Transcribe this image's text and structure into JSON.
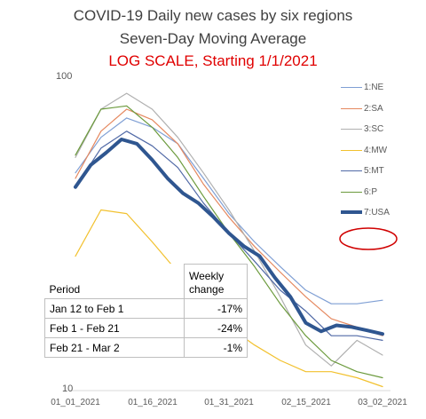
{
  "chart_data": {
    "type": "line",
    "title": "COVID-19 Daily new cases by six regions",
    "subtitle": "Seven-Day Moving Average",
    "annotation": "LOG SCALE, Starting 1/1/2021",
    "y_scale": "log",
    "ylim": [
      10,
      100
    ],
    "y_ticks": [
      "100",
      "10"
    ],
    "x_ticks": [
      "01_01_2021",
      "01_16_2021",
      "01_31_2021",
      "02_15_2021",
      "03_02_2021"
    ],
    "x_range": [
      "2021-01-01",
      "2021-03-02"
    ],
    "grid": false,
    "legend_position": "right",
    "series": [
      {
        "name": "1:NE",
        "color": "#7f9fd4",
        "width": 1.2,
        "x": [
          0,
          5,
          10,
          15,
          20,
          25,
          30,
          35,
          40,
          45,
          50,
          55,
          60
        ],
        "y": [
          50,
          65,
          75,
          70,
          62,
          48,
          37,
          30,
          25,
          21,
          19,
          19,
          19.5
        ]
      },
      {
        "name": "2:SA",
        "color": "#e5885f",
        "width": 1.2,
        "x": [
          0,
          5,
          10,
          15,
          20,
          25,
          30,
          35,
          40,
          45,
          50,
          55,
          60
        ],
        "y": [
          48,
          68,
          80,
          74,
          62,
          46,
          36,
          29,
          24,
          20,
          17,
          16,
          15
        ]
      },
      {
        "name": "3:SC",
        "color": "#b0b0b0",
        "width": 1.2,
        "x": [
          0,
          5,
          10,
          15,
          20,
          25,
          30,
          35,
          40,
          45,
          50,
          55,
          60
        ],
        "y": [
          56,
          80,
          90,
          80,
          65,
          50,
          38,
          28,
          20,
          14,
          12,
          14.5,
          13
        ]
      },
      {
        "name": "4:MW",
        "color": "#f2c12e",
        "width": 1.2,
        "x": [
          0,
          5,
          10,
          15,
          20,
          25,
          30,
          35,
          40,
          45,
          50,
          55,
          60
        ],
        "y": [
          27,
          38,
          37,
          30,
          24,
          19,
          16,
          14,
          12.5,
          11.5,
          11.5,
          11,
          10.3
        ]
      },
      {
        "name": "5:MT",
        "color": "#5069a6",
        "width": 1.2,
        "x": [
          0,
          5,
          10,
          15,
          20,
          25,
          30,
          35,
          40,
          45,
          50,
          55,
          60
        ],
        "y": [
          45,
          60,
          68,
          61,
          52,
          40,
          32,
          26,
          21,
          18,
          15,
          15,
          14.5
        ]
      },
      {
        "name": "6:P",
        "color": "#6b9a3c",
        "width": 1.2,
        "x": [
          0,
          5,
          10,
          15,
          20,
          25,
          30,
          35,
          40,
          45,
          50,
          55,
          60
        ],
        "y": [
          57,
          80,
          82,
          70,
          56,
          42,
          32,
          25,
          19,
          15,
          12.5,
          11.5,
          11
        ]
      },
      {
        "name": "7:USA",
        "color": "#2f5690",
        "width": 4,
        "x": [
          0,
          3,
          6,
          9,
          12,
          15,
          18,
          21,
          24,
          27,
          30,
          33,
          36,
          39,
          42,
          45,
          48,
          51,
          54,
          57,
          60
        ],
        "y": [
          45,
          53,
          58,
          64,
          62,
          55,
          48,
          43,
          40,
          36,
          32,
          29,
          27,
          23,
          20,
          16.5,
          15.5,
          16.2,
          16,
          15.6,
          15.2
        ]
      }
    ],
    "highlight": "circle around 7:USA near 03_02_2021"
  },
  "table": {
    "header_col1": "Period",
    "header_col2": "Weekly change",
    "rows": [
      {
        "period": "Jan 12 to Feb 1",
        "change": "-17%"
      },
      {
        "period": "Feb 1 - Feb 21",
        "change": "-24%"
      },
      {
        "period": "Feb 21 - Mar 2",
        "change": "-1%"
      }
    ]
  }
}
